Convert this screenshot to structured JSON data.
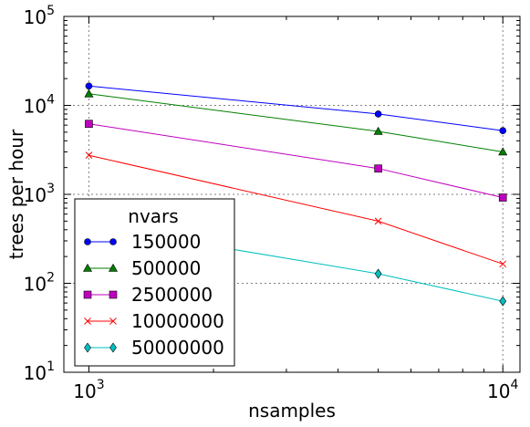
{
  "chart_data": {
    "type": "line",
    "xlabel": "nsamples",
    "ylabel": "trees per hour",
    "xscale": "log",
    "yscale": "log",
    "xlim": [
      870,
      11000
    ],
    "ylim": [
      10,
      100000
    ],
    "x_ticks": [
      {
        "base": "10",
        "exp": "3",
        "value": 1000
      },
      {
        "base": "10",
        "exp": "4",
        "value": 10000
      }
    ],
    "y_ticks": [
      {
        "base": "10",
        "exp": "1",
        "value": 10
      },
      {
        "base": "10",
        "exp": "2",
        "value": 100
      },
      {
        "base": "10",
        "exp": "3",
        "value": 1000
      },
      {
        "base": "10",
        "exp": "4",
        "value": 10000
      },
      {
        "base": "10",
        "exp": "5",
        "value": 100000
      }
    ],
    "grid": true,
    "legend": {
      "title": "nvars",
      "placement": "lower-left"
    },
    "x": [
      1000,
      5000,
      10000
    ],
    "series": [
      {
        "name": "150000",
        "values": [
          16500,
          8000,
          5200
        ],
        "color": "#0000ff",
        "marker": "circle"
      },
      {
        "name": "500000",
        "values": [
          13500,
          5100,
          3000
        ],
        "color": "#008000",
        "marker": "triangle"
      },
      {
        "name": "2500000",
        "values": [
          6200,
          1950,
          920
        ],
        "color": "#bf00bf",
        "marker": "square"
      },
      {
        "name": "10000000",
        "values": [
          2750,
          500,
          165
        ],
        "color": "#ff0000",
        "marker": "x"
      },
      {
        "name": "50000000",
        "values": [
          450,
          128,
          63
        ],
        "color": "#00bfbf",
        "marker": "diamond"
      }
    ]
  }
}
